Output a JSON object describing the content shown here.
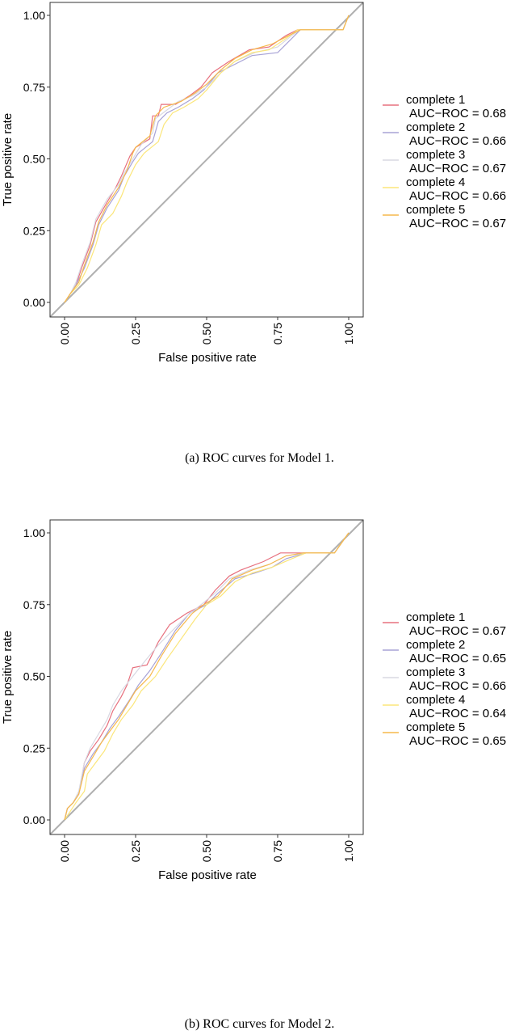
{
  "chart_data": [
    {
      "type": "line",
      "caption": "(a) ROC curves for Model 1.",
      "xlabel": "False positive rate",
      "ylabel": "True positive rate",
      "xlim": [
        0,
        1
      ],
      "ylim": [
        0,
        1
      ],
      "xticks": [
        "0.00",
        "0.25",
        "0.50",
        "0.75",
        "1.00"
      ],
      "yticks": [
        "0.00",
        "0.25",
        "0.50",
        "0.75",
        "1.00"
      ],
      "reference_line": "diagonal",
      "reference_color": "#b0b0b0",
      "legend_placement": "right",
      "series": [
        {
          "name": "complete 1",
          "auc_label": "AUC−ROC = 0.68",
          "color": "#e7707e",
          "points": [
            [
              0,
              0
            ],
            [
              0.02,
              0.03
            ],
            [
              0.04,
              0.06
            ],
            [
              0.06,
              0.12
            ],
            [
              0.09,
              0.2
            ],
            [
              0.11,
              0.28
            ],
            [
              0.15,
              0.35
            ],
            [
              0.18,
              0.4
            ],
            [
              0.2,
              0.44
            ],
            [
              0.23,
              0.51
            ],
            [
              0.25,
              0.54
            ],
            [
              0.3,
              0.57
            ],
            [
              0.31,
              0.65
            ],
            [
              0.33,
              0.65
            ],
            [
              0.34,
              0.69
            ],
            [
              0.39,
              0.69
            ],
            [
              0.44,
              0.72
            ],
            [
              0.48,
              0.75
            ],
            [
              0.52,
              0.8
            ],
            [
              0.58,
              0.84
            ],
            [
              0.65,
              0.88
            ],
            [
              0.72,
              0.89
            ],
            [
              0.78,
              0.93
            ],
            [
              0.82,
              0.95
            ],
            [
              0.98,
              0.95
            ],
            [
              1,
              1
            ]
          ]
        },
        {
          "name": "complete 2",
          "auc_label": "AUC−ROC = 0.66",
          "color": "#a8a3d6",
          "points": [
            [
              0,
              0
            ],
            [
              0.02,
              0.03
            ],
            [
              0.04,
              0.06
            ],
            [
              0.07,
              0.12
            ],
            [
              0.1,
              0.2
            ],
            [
              0.12,
              0.27
            ],
            [
              0.15,
              0.33
            ],
            [
              0.19,
              0.39
            ],
            [
              0.21,
              0.44
            ],
            [
              0.24,
              0.49
            ],
            [
              0.26,
              0.52
            ],
            [
              0.31,
              0.56
            ],
            [
              0.33,
              0.63
            ],
            [
              0.36,
              0.66
            ],
            [
              0.4,
              0.68
            ],
            [
              0.45,
              0.71
            ],
            [
              0.49,
              0.74
            ],
            [
              0.54,
              0.8
            ],
            [
              0.6,
              0.83
            ],
            [
              0.66,
              0.86
            ],
            [
              0.75,
              0.87
            ],
            [
              0.8,
              0.92
            ],
            [
              0.83,
              0.95
            ],
            [
              0.98,
              0.95
            ],
            [
              1,
              1
            ]
          ]
        },
        {
          "name": "complete 3",
          "auc_label": "AUC−ROC = 0.67",
          "color": "#d8d8e2",
          "points": [
            [
              0,
              0
            ],
            [
              0.02,
              0.03
            ],
            [
              0.04,
              0.07
            ],
            [
              0.06,
              0.13
            ],
            [
              0.09,
              0.21
            ],
            [
              0.11,
              0.29
            ],
            [
              0.15,
              0.36
            ],
            [
              0.19,
              0.41
            ],
            [
              0.21,
              0.45
            ],
            [
              0.24,
              0.5
            ],
            [
              0.27,
              0.55
            ],
            [
              0.31,
              0.59
            ],
            [
              0.32,
              0.64
            ],
            [
              0.36,
              0.67
            ],
            [
              0.4,
              0.7
            ],
            [
              0.45,
              0.72
            ],
            [
              0.5,
              0.75
            ],
            [
              0.55,
              0.8
            ],
            [
              0.6,
              0.84
            ],
            [
              0.67,
              0.87
            ],
            [
              0.75,
              0.89
            ],
            [
              0.8,
              0.93
            ],
            [
              0.83,
              0.95
            ],
            [
              0.98,
              0.95
            ],
            [
              1,
              1
            ]
          ]
        },
        {
          "name": "complete 4",
          "auc_label": "AUC−ROC = 0.66",
          "color": "#fbe67a",
          "points": [
            [
              0,
              0
            ],
            [
              0.02,
              0.03
            ],
            [
              0.05,
              0.06
            ],
            [
              0.08,
              0.12
            ],
            [
              0.11,
              0.2
            ],
            [
              0.13,
              0.27
            ],
            [
              0.17,
              0.31
            ],
            [
              0.2,
              0.37
            ],
            [
              0.22,
              0.42
            ],
            [
              0.25,
              0.48
            ],
            [
              0.28,
              0.52
            ],
            [
              0.33,
              0.56
            ],
            [
              0.35,
              0.62
            ],
            [
              0.38,
              0.66
            ],
            [
              0.42,
              0.68
            ],
            [
              0.47,
              0.71
            ],
            [
              0.5,
              0.74
            ],
            [
              0.55,
              0.8
            ],
            [
              0.6,
              0.84
            ],
            [
              0.66,
              0.87
            ],
            [
              0.72,
              0.88
            ],
            [
              0.78,
              0.92
            ],
            [
              0.82,
              0.95
            ],
            [
              0.98,
              0.95
            ],
            [
              1,
              1
            ]
          ]
        },
        {
          "name": "complete 5",
          "auc_label": "AUC−ROC = 0.67",
          "color": "#f6b84c",
          "points": [
            [
              0,
              0
            ],
            [
              0.02,
              0.03
            ],
            [
              0.05,
              0.07
            ],
            [
              0.07,
              0.13
            ],
            [
              0.1,
              0.21
            ],
            [
              0.12,
              0.28
            ],
            [
              0.15,
              0.34
            ],
            [
              0.19,
              0.4
            ],
            [
              0.22,
              0.46
            ],
            [
              0.24,
              0.52
            ],
            [
              0.25,
              0.54
            ],
            [
              0.3,
              0.58
            ],
            [
              0.32,
              0.65
            ],
            [
              0.35,
              0.68
            ],
            [
              0.41,
              0.7
            ],
            [
              0.46,
              0.73
            ],
            [
              0.5,
              0.76
            ],
            [
              0.55,
              0.81
            ],
            [
              0.6,
              0.85
            ],
            [
              0.66,
              0.88
            ],
            [
              0.73,
              0.9
            ],
            [
              0.79,
              0.93
            ],
            [
              0.83,
              0.95
            ],
            [
              0.98,
              0.95
            ],
            [
              1,
              1
            ]
          ]
        }
      ]
    },
    {
      "type": "line",
      "caption": "(b) ROC curves for Model 2.",
      "xlabel": "False positive rate",
      "ylabel": "True positive rate",
      "xlim": [
        0,
        1
      ],
      "ylim": [
        0,
        1
      ],
      "xticks": [
        "0.00",
        "0.25",
        "0.50",
        "0.75",
        "1.00"
      ],
      "yticks": [
        "0.00",
        "0.25",
        "0.50",
        "0.75",
        "1.00"
      ],
      "reference_line": "diagonal",
      "reference_color": "#b0b0b0",
      "legend_placement": "right",
      "series": [
        {
          "name": "complete 1",
          "auc_label": "AUC−ROC = 0.67",
          "color": "#e7707e",
          "points": [
            [
              0,
              0
            ],
            [
              0.01,
              0.04
            ],
            [
              0.03,
              0.06
            ],
            [
              0.05,
              0.09
            ],
            [
              0.07,
              0.2
            ],
            [
              0.09,
              0.24
            ],
            [
              0.12,
              0.28
            ],
            [
              0.15,
              0.33
            ],
            [
              0.17,
              0.38
            ],
            [
              0.2,
              0.43
            ],
            [
              0.22,
              0.47
            ],
            [
              0.24,
              0.53
            ],
            [
              0.29,
              0.54
            ],
            [
              0.33,
              0.62
            ],
            [
              0.37,
              0.68
            ],
            [
              0.43,
              0.72
            ],
            [
              0.49,
              0.75
            ],
            [
              0.53,
              0.8
            ],
            [
              0.58,
              0.85
            ],
            [
              0.62,
              0.87
            ],
            [
              0.7,
              0.9
            ],
            [
              0.76,
              0.93
            ],
            [
              0.95,
              0.93
            ],
            [
              1,
              1
            ]
          ]
        },
        {
          "name": "complete 2",
          "auc_label": "AUC−ROC = 0.65",
          "color": "#a8a3d6",
          "points": [
            [
              0,
              0
            ],
            [
              0.01,
              0.04
            ],
            [
              0.03,
              0.06
            ],
            [
              0.05,
              0.09
            ],
            [
              0.07,
              0.18
            ],
            [
              0.1,
              0.23
            ],
            [
              0.13,
              0.27
            ],
            [
              0.16,
              0.32
            ],
            [
              0.19,
              0.36
            ],
            [
              0.23,
              0.42
            ],
            [
              0.26,
              0.47
            ],
            [
              0.3,
              0.52
            ],
            [
              0.34,
              0.58
            ],
            [
              0.39,
              0.66
            ],
            [
              0.44,
              0.72
            ],
            [
              0.5,
              0.75
            ],
            [
              0.54,
              0.79
            ],
            [
              0.6,
              0.84
            ],
            [
              0.67,
              0.86
            ],
            [
              0.73,
              0.88
            ],
            [
              0.78,
              0.91
            ],
            [
              0.85,
              0.93
            ],
            [
              0.95,
              0.93
            ],
            [
              1,
              1
            ]
          ]
        },
        {
          "name": "complete 3",
          "auc_label": "AUC−ROC = 0.66",
          "color": "#d8d8e2",
          "points": [
            [
              0,
              0
            ],
            [
              0.01,
              0.04
            ],
            [
              0.03,
              0.06
            ],
            [
              0.05,
              0.1
            ],
            [
              0.07,
              0.2
            ],
            [
              0.09,
              0.25
            ],
            [
              0.12,
              0.3
            ],
            [
              0.15,
              0.35
            ],
            [
              0.17,
              0.4
            ],
            [
              0.2,
              0.45
            ],
            [
              0.24,
              0.5
            ],
            [
              0.28,
              0.55
            ],
            [
              0.33,
              0.61
            ],
            [
              0.38,
              0.66
            ],
            [
              0.43,
              0.71
            ],
            [
              0.48,
              0.75
            ],
            [
              0.53,
              0.79
            ],
            [
              0.58,
              0.84
            ],
            [
              0.65,
              0.87
            ],
            [
              0.72,
              0.89
            ],
            [
              0.78,
              0.92
            ],
            [
              0.85,
              0.93
            ],
            [
              0.95,
              0.93
            ],
            [
              1,
              1
            ]
          ]
        },
        {
          "name": "complete 4",
          "auc_label": "AUC−ROC = 0.64",
          "color": "#fbe67a",
          "points": [
            [
              0,
              0
            ],
            [
              0.02,
              0.03
            ],
            [
              0.04,
              0.06
            ],
            [
              0.07,
              0.1
            ],
            [
              0.08,
              0.16
            ],
            [
              0.11,
              0.2
            ],
            [
              0.14,
              0.24
            ],
            [
              0.17,
              0.3
            ],
            [
              0.2,
              0.35
            ],
            [
              0.24,
              0.4
            ],
            [
              0.27,
              0.45
            ],
            [
              0.32,
              0.5
            ],
            [
              0.36,
              0.56
            ],
            [
              0.41,
              0.63
            ],
            [
              0.46,
              0.7
            ],
            [
              0.5,
              0.75
            ],
            [
              0.55,
              0.78
            ],
            [
              0.6,
              0.83
            ],
            [
              0.66,
              0.86
            ],
            [
              0.73,
              0.88
            ],
            [
              0.8,
              0.91
            ],
            [
              0.85,
              0.93
            ],
            [
              0.95,
              0.93
            ],
            [
              1,
              1
            ]
          ]
        },
        {
          "name": "complete 5",
          "auc_label": "AUC−ROC = 0.65",
          "color": "#f6b84c",
          "points": [
            [
              0,
              0
            ],
            [
              0.01,
              0.04
            ],
            [
              0.03,
              0.06
            ],
            [
              0.05,
              0.09
            ],
            [
              0.07,
              0.17
            ],
            [
              0.1,
              0.22
            ],
            [
              0.13,
              0.27
            ],
            [
              0.16,
              0.31
            ],
            [
              0.19,
              0.35
            ],
            [
              0.22,
              0.4
            ],
            [
              0.25,
              0.45
            ],
            [
              0.3,
              0.5
            ],
            [
              0.34,
              0.57
            ],
            [
              0.39,
              0.65
            ],
            [
              0.45,
              0.72
            ],
            [
              0.49,
              0.75
            ],
            [
              0.54,
              0.78
            ],
            [
              0.59,
              0.84
            ],
            [
              0.66,
              0.87
            ],
            [
              0.72,
              0.89
            ],
            [
              0.78,
              0.92
            ],
            [
              0.84,
              0.93
            ],
            [
              0.95,
              0.93
            ],
            [
              1,
              1
            ]
          ]
        }
      ]
    }
  ]
}
